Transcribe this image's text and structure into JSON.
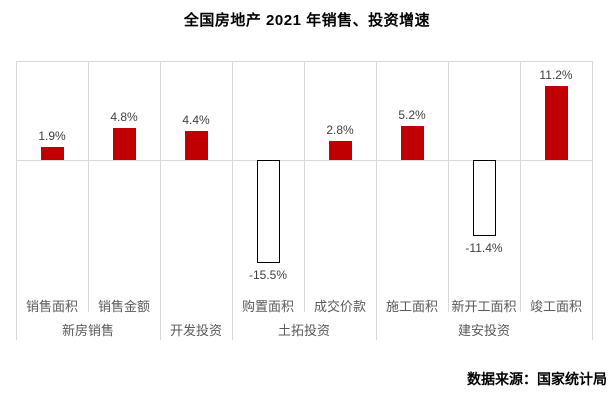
{
  "title": "全国房地产 2021 年销售、投资增速",
  "source": "数据来源：国家统计局",
  "colors": {
    "positive_bar": "#c00000",
    "negative_bar_fill": "#ffffff",
    "negative_bar_border": "#000000",
    "gridline": "#d9d9d9",
    "value_label": "#404040",
    "axis_label": "#595959",
    "title_text": "#000000"
  },
  "chart_data": {
    "type": "bar",
    "title": "全国房地产 2021 年销售、投资增速",
    "categories": [
      "销售面积",
      "销售金额",
      "开发投资",
      "购置面积",
      "成交价款",
      "施工面积",
      "新开工面积",
      "竣工面积"
    ],
    "values": [
      1.9,
      4.8,
      4.4,
      -15.5,
      2.8,
      5.2,
      -11.4,
      11.2
    ],
    "value_labels": [
      "1.9%",
      "4.8%",
      "4.4%",
      "-15.5%",
      "2.8%",
      "5.2%",
      "-11.4%",
      "11.2%"
    ],
    "leaf_axis_labels": [
      "销售面积",
      "销售金额",
      "",
      "购置面积",
      "成交价款",
      "施工面积",
      "新开工面积",
      "竣工面积"
    ],
    "groups": [
      {
        "label": "新房销售",
        "start": 0,
        "span": 2
      },
      {
        "label": "开发投资",
        "start": 2,
        "span": 1
      },
      {
        "label": "土拓投资",
        "start": 3,
        "span": 2
      },
      {
        "label": "建安投资",
        "start": 5,
        "span": 3
      }
    ],
    "unit": "%",
    "ylim": [
      -20,
      15
    ],
    "grid": "vertical category gridlines, zero axis line, top plot border",
    "legend": "none",
    "source_note": "数据来源：国家统计局"
  }
}
